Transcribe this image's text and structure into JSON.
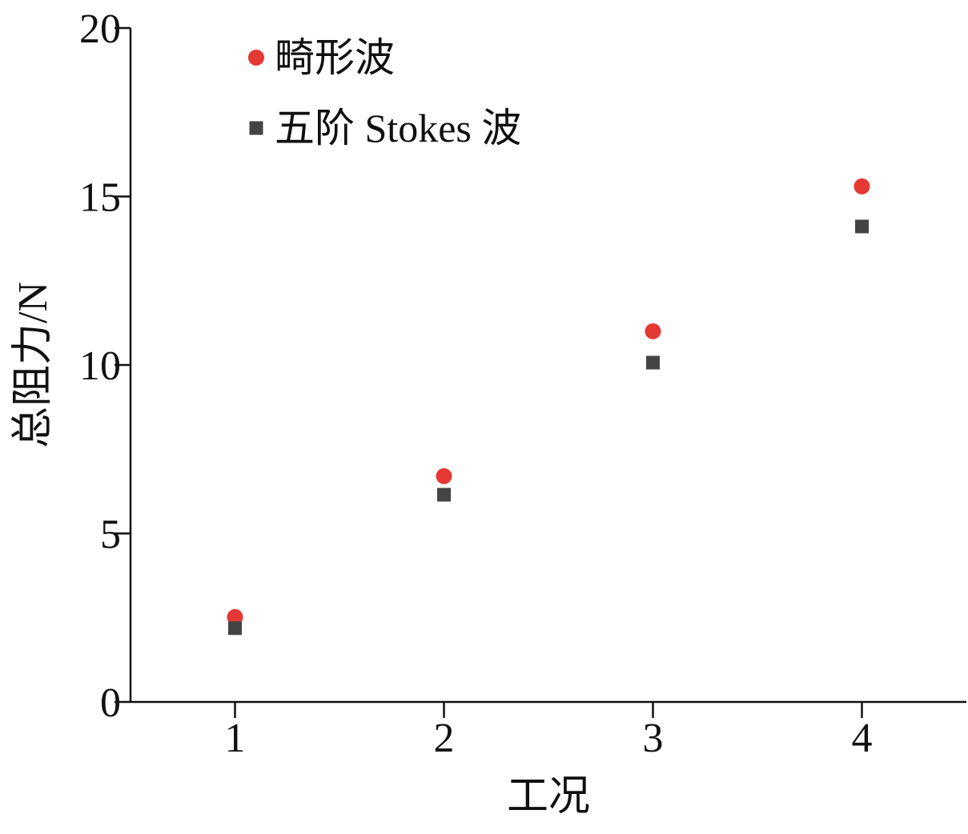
{
  "chart_data": {
    "type": "scatter",
    "x_label": "工况",
    "y_label": "总阻力/N",
    "x": [
      1,
      2,
      3,
      4
    ],
    "series": [
      {
        "name": "畸形波",
        "color": "#e53935",
        "marker": "circle",
        "values": [
          2.52,
          6.7,
          11.0,
          15.3
        ]
      },
      {
        "name": "五阶 Stokes 波",
        "color": "#444444",
        "marker": "square",
        "values": [
          2.19,
          6.15,
          10.07,
          14.11
        ]
      }
    ],
    "xlim": [
      0.5,
      4.5
    ],
    "xticks": [
      1,
      2,
      3,
      4
    ],
    "ylim": [
      0,
      20
    ],
    "yticks": [
      0,
      5,
      10,
      15,
      20
    ],
    "legend": "upper left"
  }
}
